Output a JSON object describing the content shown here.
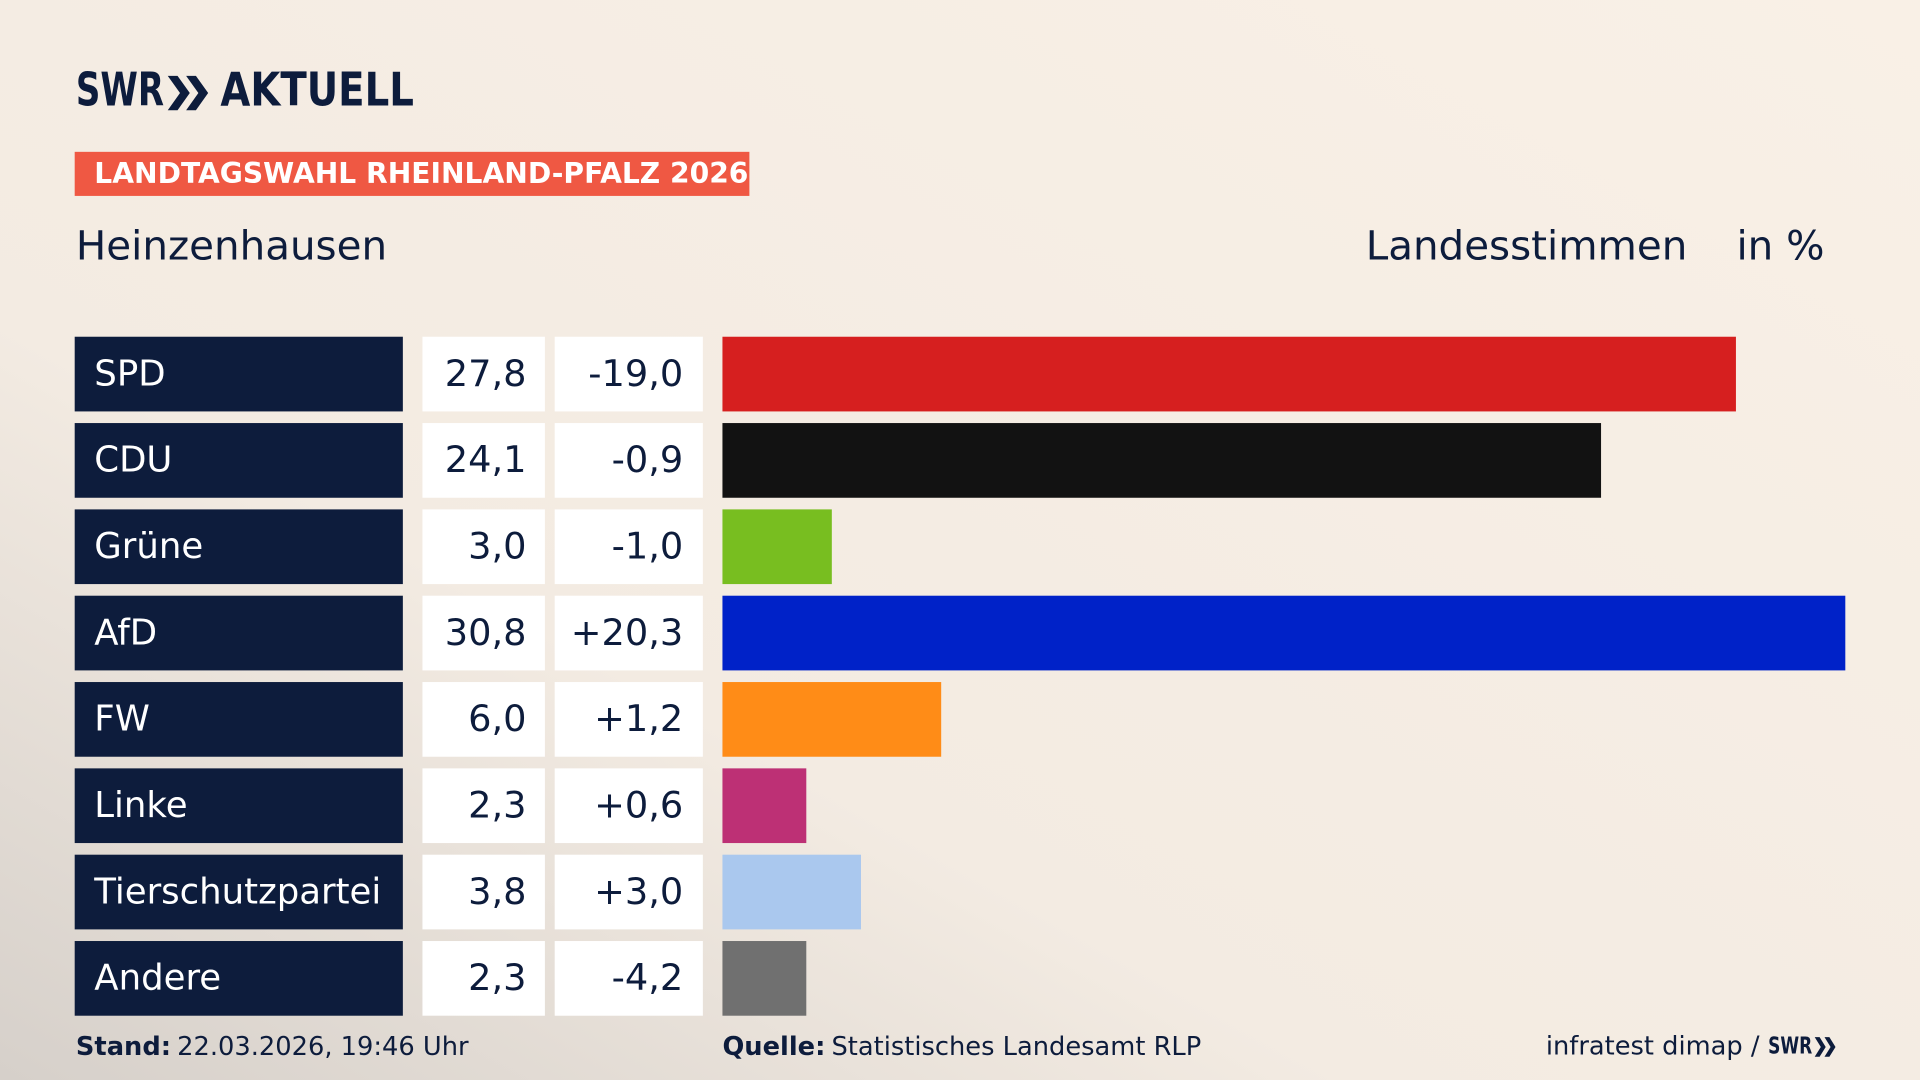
{
  "chart_data": {
    "type": "bar",
    "logo": {
      "brand": "SWR",
      "name": "AKTUELL"
    },
    "badge": "LANDTAGSWAHL RHEINLAND-PFALZ 2026",
    "title": "Heinzenhausen",
    "value_header": "Landesstimmen",
    "unit": "in %",
    "categories": [
      "SPD",
      "CDU",
      "Grüne",
      "AfD",
      "FW",
      "Linke",
      "Tierschutzpartei",
      "Andere"
    ],
    "values": [
      27.8,
      24.1,
      3.0,
      30.8,
      6.0,
      2.3,
      3.8,
      2.3
    ],
    "value_labels": [
      "27,8",
      "24,1",
      "3,0",
      "30,8",
      "6,0",
      "2,3",
      "3,8",
      "2,3"
    ],
    "changes": [
      -19.0,
      -0.9,
      -1.0,
      20.3,
      1.2,
      0.6,
      3.0,
      -4.2
    ],
    "change_labels": [
      "-19,0",
      "-0,9",
      "-1,0",
      "+20,3",
      "+1,2",
      "+0,6",
      "+3,0",
      "-4,2"
    ],
    "colors": [
      "#d61f1f",
      "#121212",
      "#78be20",
      "#0022c8",
      "#ff8c17",
      "#bd3075",
      "#aac8ee",
      "#707070"
    ],
    "footer": {
      "stand_label": "Stand:",
      "stand": "22.03.2026, 19:46 Uhr",
      "source_label": "Quelle:",
      "source": "Statistisches Landesamt RLP",
      "credit": "infratest dimap /",
      "credit_brand": "SWR"
    }
  }
}
